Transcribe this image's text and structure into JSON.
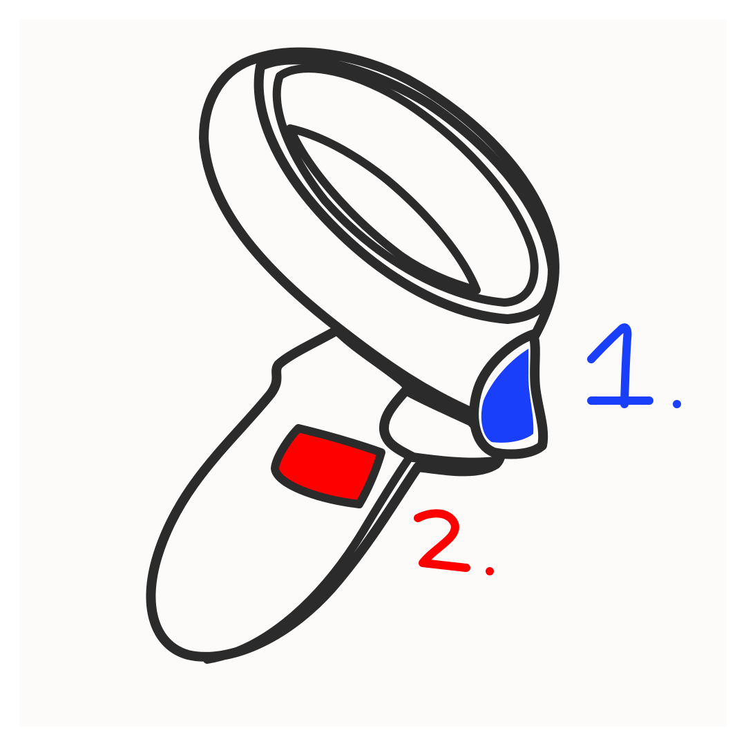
{
  "labels": [
    {
      "id": "trigger-button",
      "text": "1.",
      "color": "#1a3ffa"
    },
    {
      "id": "grip-button",
      "text": "2.",
      "color": "#ff0000"
    }
  ],
  "colors": {
    "outline": "#2b2b2b",
    "body": "#fcfbf9",
    "page": "#ffffff"
  },
  "icon": "vr-controller-icon"
}
